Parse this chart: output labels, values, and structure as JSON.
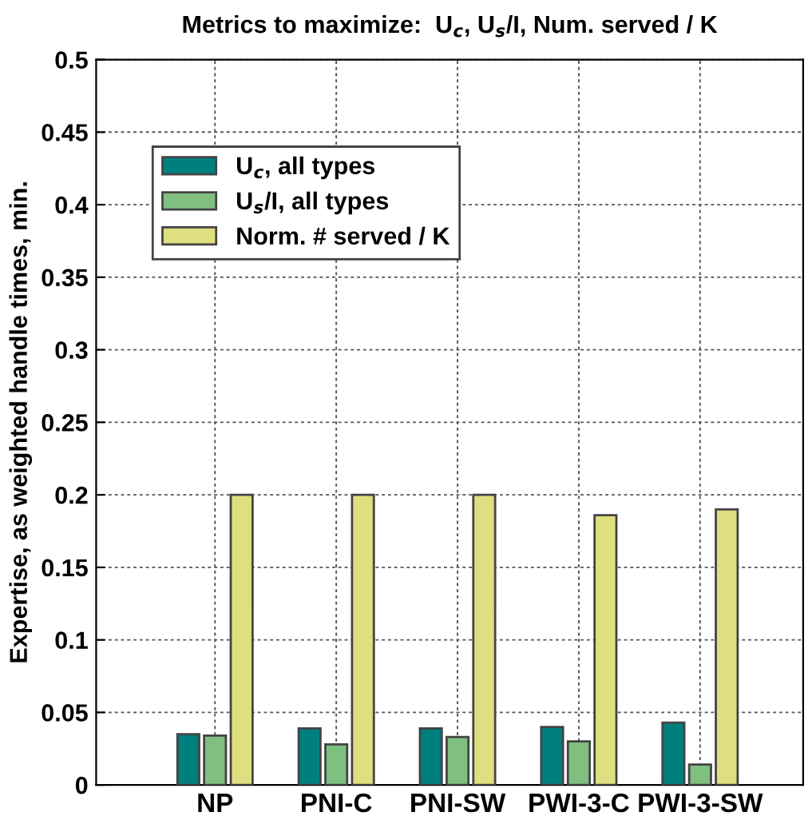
{
  "chart_data": {
    "type": "bar",
    "title": "Metrics to maximize:  U$_{c}$, U$_{s}$/I, Num. served / K",
    "ylabel": "Expertise, as weighted handle times, min.",
    "categories": [
      "NP",
      "PNI-C",
      "PNI-SW",
      "PWI-3-C",
      "PWI-3-SW"
    ],
    "series": [
      {
        "name": "U$_{c}$, all types",
        "color": "#007f7f",
        "values": [
          0.035,
          0.039,
          0.039,
          0.04,
          0.043
        ]
      },
      {
        "name": "U$_{s}$/I, all types",
        "color": "#7fbf7f",
        "values": [
          0.034,
          0.028,
          0.033,
          0.03,
          0.014
        ]
      },
      {
        "name": "Norm. # served / K",
        "color": "#dfdf7f",
        "values": [
          0.2,
          0.2,
          0.2,
          0.186,
          0.19
        ]
      }
    ],
    "ylim": [
      0,
      0.5
    ],
    "yticks": [
      0,
      0.05,
      0.1,
      0.15,
      0.2,
      0.25,
      0.3,
      0.35,
      0.4,
      0.45,
      0.5
    ],
    "grid": true,
    "legend": "top left"
  }
}
